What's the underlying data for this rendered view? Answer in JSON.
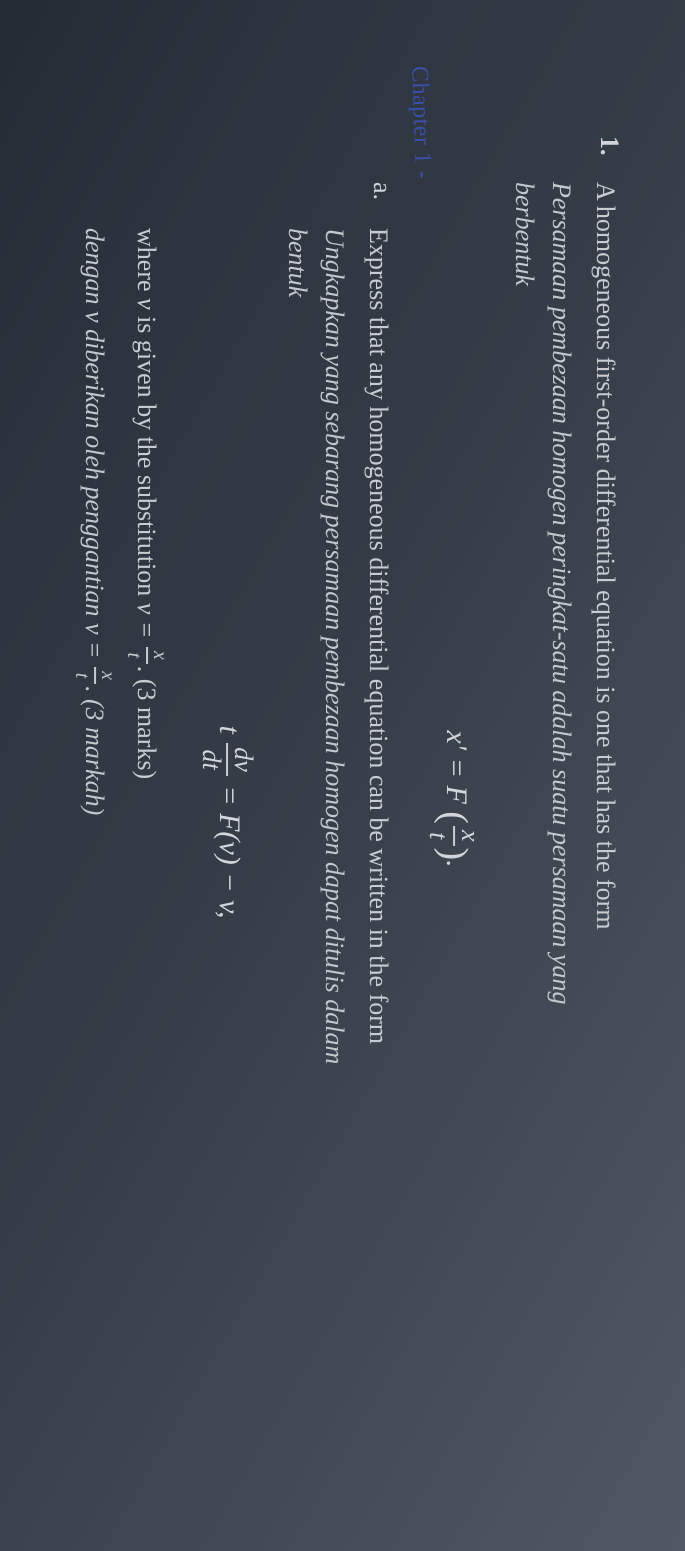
{
  "question": {
    "number": "1.",
    "lead_en": "A homogeneous first-order differential equation is one that has the form",
    "lead_ms_1": "Persamaan pembezaan homogen peringkat-satu adalah suatu persamaan yang",
    "lead_ms_2": "berbentuk",
    "formula1_lhs": "x′ = F",
    "formula1_frac_num": "x",
    "formula1_frac_den": "t",
    "formula1_tail": ".",
    "handnote": "Chapter 1 -",
    "part_a": {
      "label": "a.",
      "en": "Express that any homogeneous differential equation can be written in the form",
      "ms_1": "Ungkapkan yang sebarang persamaan pembezaan homogen dapat ditulis dalam",
      "ms_2": "bentuk",
      "formula2_t": "t",
      "formula2_frac_num": "dv",
      "formula2_frac_den": "dt",
      "formula2_rhs": " = F(v) − v,",
      "where_en_pre": "where ",
      "where_en_v": "v",
      "where_en_mid": " is given by the substitution ",
      "where_en_sub": "v = ",
      "where_frac_num": "x",
      "where_frac_den": "t",
      "marks_en": ". (3 marks)",
      "where_ms_pre": "dengan ",
      "where_ms_v": "v",
      "where_ms_mid": " diberikan oleh penggantian ",
      "where_ms_sub": "v = ",
      "marks_ms": ". (3 markah)"
    }
  }
}
